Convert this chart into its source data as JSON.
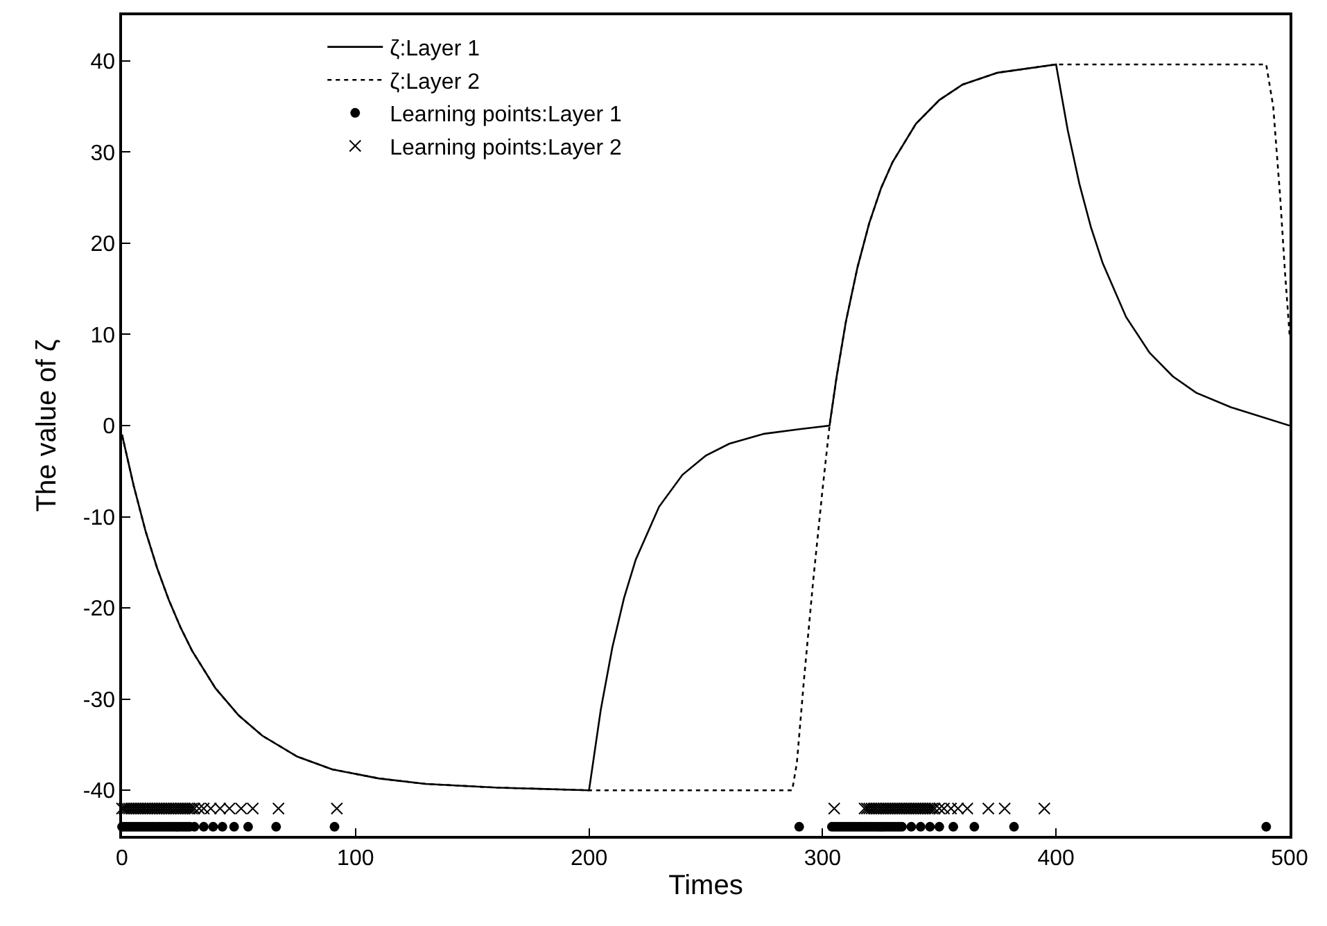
{
  "chart_data": {
    "type": "line",
    "xlabel": "Times",
    "ylabel": "The value of ζ",
    "xlim": [
      0,
      500
    ],
    "xticks": [
      0,
      100,
      200,
      300,
      400,
      500
    ],
    "ylim": [
      -45,
      45
    ],
    "yticks": [
      -40,
      -30,
      -20,
      -10,
      0,
      10,
      20,
      30,
      40
    ],
    "legend": "top left",
    "series": [
      {
        "name": "ζ:Layer 1",
        "line_style": "solid",
        "color": "#000000",
        "x": [
          0,
          5,
          10,
          15,
          20,
          25,
          30,
          40,
          50,
          60,
          75,
          90,
          110,
          130,
          160,
          200,
          205,
          210,
          215,
          220,
          230,
          240,
          250,
          260,
          275,
          290,
          303,
          306,
          310,
          315,
          320,
          325,
          330,
          340,
          350,
          360,
          375,
          400,
          405,
          410,
          415,
          420,
          430,
          440,
          450,
          460,
          475,
          500
        ],
        "values": [
          -1,
          -6.6,
          -11.5,
          -15.6,
          -19.1,
          -22.1,
          -24.7,
          -28.8,
          -31.8,
          -34,
          -36.3,
          -37.7,
          -38.7,
          -39.3,
          -39.7,
          -40,
          -31.2,
          -24.3,
          -18.9,
          -14.7,
          -8.9,
          -5.4,
          -3.3,
          -2,
          -0.9,
          -0.4,
          0,
          5.3,
          11.4,
          17.4,
          22.2,
          26,
          28.9,
          33.1,
          35.7,
          37.4,
          38.7,
          39.6,
          32.4,
          26.5,
          21.7,
          17.8,
          11.9,
          8,
          5.4,
          3.6,
          2,
          0
        ]
      },
      {
        "name": "ζ:Layer 2",
        "line_style": "dotted",
        "color": "#000000",
        "x": [
          0,
          5,
          10,
          15,
          20,
          25,
          30,
          40,
          50,
          60,
          75,
          90,
          110,
          130,
          160,
          200,
          287,
          289,
          292,
          296,
          300,
          303,
          306,
          310,
          315,
          320,
          325,
          330,
          340,
          350,
          360,
          375,
          400,
          490,
          493,
          496,
          498,
          500
        ],
        "values": [
          -1,
          -6.6,
          -11.5,
          -15.6,
          -19.1,
          -22.1,
          -24.7,
          -28.8,
          -31.8,
          -34,
          -36.3,
          -37.7,
          -38.7,
          -39.3,
          -39.7,
          -40,
          -40,
          -37,
          -28,
          -17,
          -7,
          0,
          5.3,
          11.4,
          17.4,
          22.2,
          26,
          28.9,
          33.1,
          35.7,
          37.4,
          38.7,
          39.6,
          39.6,
          35,
          25,
          17,
          10
        ]
      },
      {
        "name": "Learning points:Layer 1",
        "type": "scatter",
        "marker": "circle",
        "color": "#000000",
        "x": [
          0,
          1,
          2,
          3,
          4,
          5,
          6,
          7,
          8,
          9,
          10,
          11,
          12,
          13,
          14,
          15,
          16,
          17,
          18,
          19,
          20,
          21,
          22,
          23,
          24,
          25,
          26,
          27,
          28,
          29,
          31,
          35,
          39,
          43,
          48,
          54,
          66,
          91,
          290,
          304,
          305,
          306,
          307,
          308,
          309,
          310,
          311,
          312,
          313,
          314,
          315,
          316,
          317,
          318,
          319,
          320,
          321,
          322,
          323,
          324,
          325,
          326,
          327,
          328,
          329,
          330,
          331,
          332,
          333,
          334,
          338,
          342,
          346,
          350,
          356,
          365,
          382,
          490
        ],
        "values": [
          -44,
          -44,
          -44,
          -44,
          -44,
          -44,
          -44,
          -44,
          -44,
          -44,
          -44,
          -44,
          -44,
          -44,
          -44,
          -44,
          -44,
          -44,
          -44,
          -44,
          -44,
          -44,
          -44,
          -44,
          -44,
          -44,
          -44,
          -44,
          -44,
          -44,
          -44,
          -44,
          -44,
          -44,
          -44,
          -44,
          -44,
          -44,
          -44,
          -44,
          -44,
          -44,
          -44,
          -44,
          -44,
          -44,
          -44,
          -44,
          -44,
          -44,
          -44,
          -44,
          -44,
          -44,
          -44,
          -44,
          -44,
          -44,
          -44,
          -44,
          -44,
          -44,
          -44,
          -44,
          -44,
          -44,
          -44,
          -44,
          -44,
          -44,
          -44,
          -44,
          -44,
          -44,
          -44,
          -44,
          -44,
          -44
        ]
      },
      {
        "name": "Learning points:Layer 2",
        "type": "scatter",
        "marker": "cross",
        "color": "#000000",
        "x": [
          0,
          1,
          2,
          3,
          4,
          5,
          6,
          7,
          8,
          9,
          10,
          11,
          12,
          13,
          14,
          15,
          16,
          17,
          18,
          19,
          20,
          21,
          22,
          23,
          24,
          25,
          26,
          27,
          28,
          29,
          30,
          31,
          33,
          35,
          38,
          42,
          46,
          51,
          56,
          67,
          92,
          305,
          318,
          319,
          320,
          321,
          322,
          323,
          324,
          325,
          326,
          327,
          328,
          329,
          330,
          331,
          332,
          333,
          334,
          335,
          336,
          337,
          338,
          339,
          340,
          341,
          342,
          343,
          344,
          345,
          346,
          347,
          348,
          350,
          352,
          355,
          358,
          362,
          371,
          378,
          395
        ],
        "values": [
          -42,
          -42,
          -42,
          -42,
          -42,
          -42,
          -42,
          -42,
          -42,
          -42,
          -42,
          -42,
          -42,
          -42,
          -42,
          -42,
          -42,
          -42,
          -42,
          -42,
          -42,
          -42,
          -42,
          -42,
          -42,
          -42,
          -42,
          -42,
          -42,
          -42,
          -42,
          -42,
          -42,
          -42,
          -42,
          -42,
          -42,
          -42,
          -42,
          -42,
          -42,
          -42,
          -42,
          -42,
          -42,
          -42,
          -42,
          -42,
          -42,
          -42,
          -42,
          -42,
          -42,
          -42,
          -42,
          -42,
          -42,
          -42,
          -42,
          -42,
          -42,
          -42,
          -42,
          -42,
          -42,
          -42,
          -42,
          -42,
          -42,
          -42,
          -42,
          -42,
          -42,
          -42,
          -42,
          -42,
          -42,
          -42,
          -42,
          -42,
          -42
        ]
      }
    ]
  }
}
